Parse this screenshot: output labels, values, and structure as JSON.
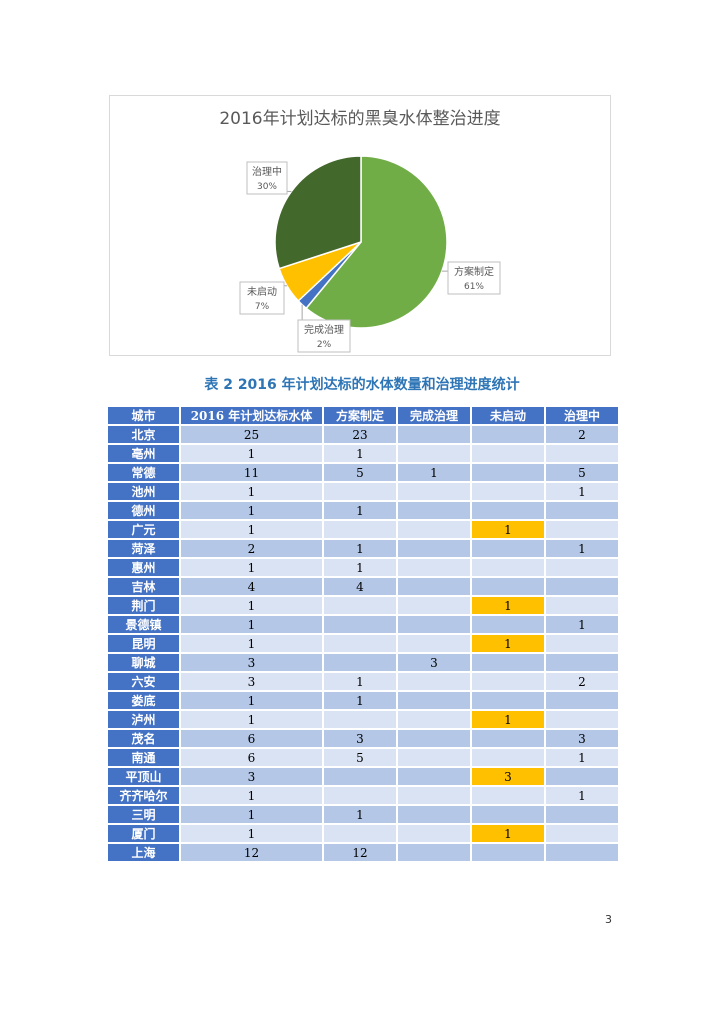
{
  "chart_data": {
    "type": "pie",
    "title": "2016年计划达标的黑臭水体整治进度",
    "slices": [
      {
        "name": "方案制定",
        "value": 61,
        "label": "61%",
        "color": "#70ad47"
      },
      {
        "name": "完成治理",
        "value": 2,
        "label": "2%",
        "color": "#4472c4"
      },
      {
        "name": "未启动",
        "value": 7,
        "label": "7%",
        "color": "#ffc000"
      },
      {
        "name": "治理中",
        "value": 30,
        "label": "30%",
        "color": "#43682b"
      }
    ]
  },
  "table": {
    "caption": "表 2 2016 年计划达标的水体数量和治理进度统计",
    "headers": [
      "城市",
      "2016 年计划达标水体",
      "方案制定",
      "完成治理",
      "未启动",
      "治理中"
    ],
    "rows": [
      [
        "北京",
        "25",
        "23",
        "",
        "",
        "2"
      ],
      [
        "亳州",
        "1",
        "1",
        "",
        "",
        ""
      ],
      [
        "常德",
        "11",
        "5",
        "1",
        "",
        "5"
      ],
      [
        "池州",
        "1",
        "",
        "",
        "",
        "1"
      ],
      [
        "德州",
        "1",
        "1",
        "",
        "",
        ""
      ],
      [
        "广元",
        "1",
        "",
        "",
        "1",
        ""
      ],
      [
        "菏泽",
        "2",
        "1",
        "",
        "",
        "1"
      ],
      [
        "惠州",
        "1",
        "1",
        "",
        "",
        ""
      ],
      [
        "吉林",
        "4",
        "4",
        "",
        "",
        ""
      ],
      [
        "荆门",
        "1",
        "",
        "",
        "1",
        ""
      ],
      [
        "景德镇",
        "1",
        "",
        "",
        "",
        "1"
      ],
      [
        "昆明",
        "1",
        "",
        "",
        "1",
        ""
      ],
      [
        "聊城",
        "3",
        "",
        "3",
        "",
        ""
      ],
      [
        "六安",
        "3",
        "1",
        "",
        "",
        "2"
      ],
      [
        "娄底",
        "1",
        "1",
        "",
        "",
        ""
      ],
      [
        "泸州",
        "1",
        "",
        "",
        "1",
        ""
      ],
      [
        "茂名",
        "6",
        "3",
        "",
        "",
        "3"
      ],
      [
        "南通",
        "6",
        "5",
        "",
        "",
        "1"
      ],
      [
        "平顶山",
        "3",
        "",
        "",
        "3",
        ""
      ],
      [
        "齐齐哈尔",
        "1",
        "",
        "",
        "",
        "1"
      ],
      [
        "三明",
        "1",
        "1",
        "",
        "",
        ""
      ],
      [
        "厦门",
        "1",
        "",
        "",
        "1",
        ""
      ],
      [
        "上海",
        "12",
        "12",
        "",
        "",
        ""
      ]
    ],
    "highlight_color": "#ffc000"
  },
  "page_number": "3"
}
